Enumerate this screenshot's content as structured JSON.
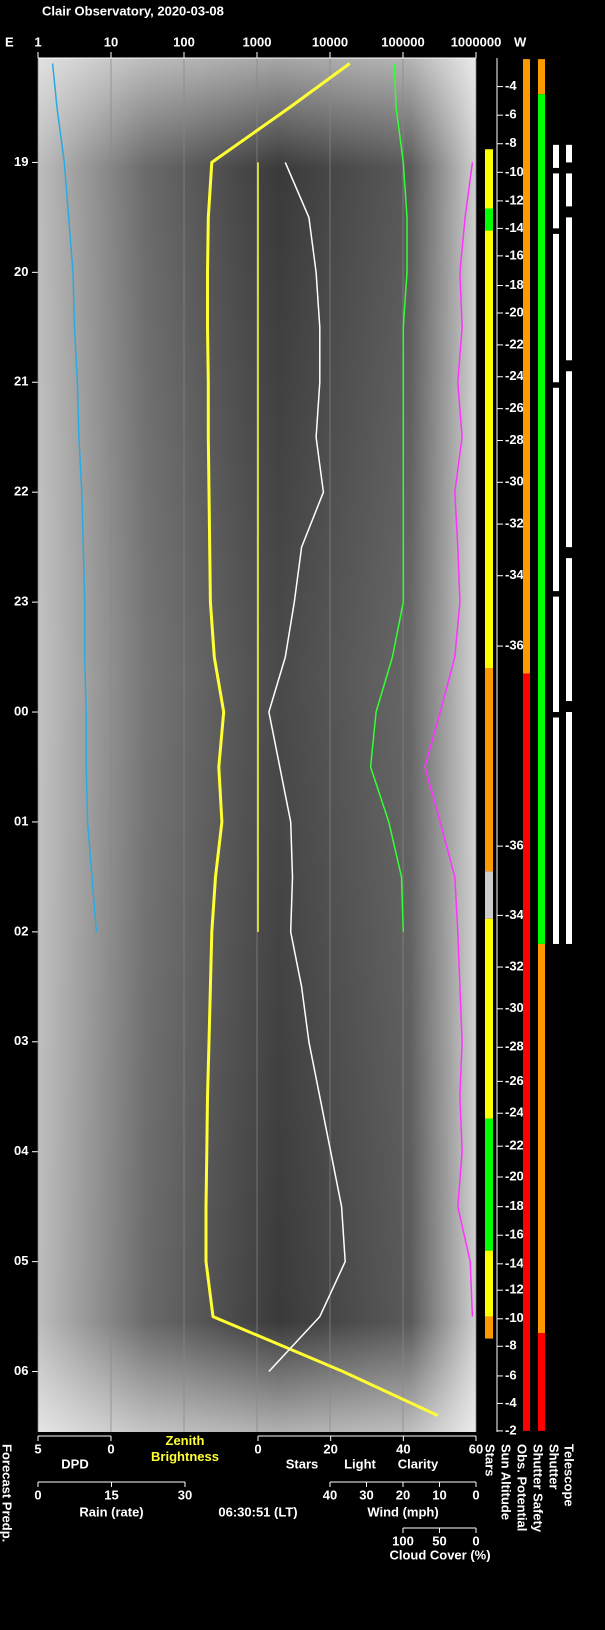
{
  "chart_data": {
    "type": "line",
    "title": "Clair Observatory, 2020-03-08",
    "east_label": "E",
    "west_label": "W",
    "time_label": "06:30:51 (LT)",
    "ylim": [
      18.05,
      30.55
    ],
    "yticks": [
      19,
      20,
      21,
      22,
      23,
      {
        "value": 24,
        "label": "00"
      },
      {
        "value": 25,
        "label": "01"
      },
      {
        "value": 26,
        "label": "02"
      },
      {
        "value": 27,
        "label": "03"
      },
      {
        "value": 28,
        "label": "04"
      },
      {
        "value": 29,
        "label": "05"
      },
      {
        "value": 30,
        "label": "06"
      }
    ],
    "axes": {
      "brightness": {
        "lim": [
          1,
          1000000
        ],
        "ticks": [
          1,
          10,
          100,
          1000,
          10000,
          100000,
          1000000
        ],
        "log": true,
        "grid": true
      },
      "dpd": {
        "lim": [
          5,
          0
        ],
        "ticks": [
          5,
          0
        ]
      },
      "stars": {
        "lim": [
          0,
          60
        ],
        "ticks": [
          0,
          20,
          40,
          60
        ]
      },
      "rain": {
        "lim": [
          0,
          30
        ],
        "ticks": [
          0,
          15,
          30
        ],
        "label": "Rain (rate)",
        "color": "#29c5e6"
      },
      "wind": {
        "lim": [
          40,
          0
        ],
        "ticks": [
          40,
          30,
          20,
          10,
          0
        ],
        "label": "Wind (mph)",
        "color": "#ff8fa3"
      },
      "cloud": {
        "lim": [
          100,
          0
        ],
        "ticks": [
          100,
          50,
          0
        ]
      }
    },
    "x": [
      18.1,
      18.5,
      19,
      19.5,
      20,
      20.5,
      21,
      21.5,
      22,
      22.5,
      23,
      23.5,
      24,
      24.5,
      25,
      25.5,
      26,
      26.5,
      27,
      27.5,
      28,
      28.5,
      29,
      29.5,
      30,
      30.4
    ],
    "series": [
      {
        "name": "DPD",
        "color": "#29abe2",
        "axis": "dpd",
        "values": [
          4.0,
          3.7,
          3.2,
          2.9,
          2.6,
          2.5,
          2.3,
          2.2,
          2.0,
          1.9,
          1.8,
          1.8,
          1.7,
          1.7,
          1.6,
          1.3,
          1.0,
          null,
          null,
          null,
          null,
          null,
          null,
          null,
          null,
          null
        ]
      },
      {
        "name": "Zenith Brightness",
        "color": "#ffff33",
        "axis": "brightness",
        "values": [
          18600,
          2800,
          240,
          215,
          210,
          210,
          215,
          215,
          220,
          225,
          230,
          260,
          350,
          300,
          330,
          270,
          240,
          230,
          220,
          210,
          205,
          200,
          200,
          250,
          15000,
          300000
        ]
      },
      {
        "name": "Stars",
        "color": "#ffffff",
        "axis": "stars",
        "values": [
          null,
          null,
          7.5,
          14,
          16,
          17,
          17,
          16,
          18,
          12,
          10,
          7.5,
          3,
          6,
          9,
          9.5,
          9,
          12,
          14,
          17,
          20,
          23,
          24,
          17,
          3,
          null
        ]
      },
      {
        "name": "Light",
        "color": "#ffff33",
        "axis": "stars",
        "values": [
          null,
          null,
          0,
          0,
          0,
          0,
          0,
          0,
          0,
          0,
          0,
          0,
          0,
          0,
          0,
          0,
          0,
          null,
          null,
          null,
          null,
          null,
          null,
          null,
          null,
          null
        ]
      },
      {
        "name": "Clarity",
        "color": "#33ff33",
        "axis": "stars",
        "values": [
          37.5,
          38,
          40,
          41,
          41,
          40,
          40,
          40,
          40,
          40,
          40,
          37,
          32.5,
          31,
          36,
          39.5,
          40,
          null,
          null,
          null,
          null,
          null,
          null,
          null,
          null,
          null
        ]
      },
      {
        "name": "Cloud Cover (%)",
        "color": "#ff33ff",
        "axis": "cloud",
        "values": [
          null,
          null,
          5,
          15,
          22,
          19,
          25,
          19,
          29,
          25,
          22,
          29,
          49,
          70,
          49,
          29,
          25,
          22,
          19,
          22,
          19,
          25,
          8,
          5,
          null,
          null
        ]
      }
    ],
    "sun_altitude": {
      "label": "Sun Altitude",
      "times": [
        18.31,
        18.57,
        18.83,
        19.09,
        19.35,
        19.6,
        19.85,
        20.12,
        20.37,
        20.66,
        20.95,
        21.24,
        21.53,
        21.91,
        22.29,
        22.76,
        23.4,
        25.22,
        25.85,
        26.32,
        26.7,
        27.05,
        27.36,
        27.65,
        27.95,
        28.23,
        28.5,
        28.76,
        29.02,
        29.26,
        29.52,
        29.77,
        30.04,
        30.29,
        30.54
      ],
      "values": [
        -4,
        -6,
        -8,
        -10,
        -12,
        -14,
        -16,
        -18,
        -20,
        -22,
        -24,
        -26,
        -28,
        -30,
        -32,
        -34,
        -36,
        -36,
        -34,
        -32,
        -30,
        -28,
        -26,
        -24,
        -22,
        -20,
        -18,
        -16,
        -14,
        -12,
        -10,
        -8,
        -6,
        -4,
        -2
      ]
    },
    "forecast_label": "Forecast Predp.",
    "columns": [
      {
        "name": "Stars",
        "segments": [
          {
            "start": 18.88,
            "end": 19.42,
            "color": "#ffff00"
          },
          {
            "start": 19.42,
            "end": 19.62,
            "color": "#00ff00"
          },
          {
            "start": 19.62,
            "end": 23.6,
            "color": "#ffff00"
          },
          {
            "start": 23.6,
            "end": 25.45,
            "color": "#ff9900"
          },
          {
            "start": 25.45,
            "end": 25.88,
            "color": "#cccccc"
          },
          {
            "start": 25.88,
            "end": 27.7,
            "color": "#ffff00"
          },
          {
            "start": 27.7,
            "end": 28.9,
            "color": "#00ff00"
          },
          {
            "start": 28.9,
            "end": 29.5,
            "color": "#ffff00"
          },
          {
            "start": 29.5,
            "end": 29.7,
            "color": "#ff9900"
          }
        ]
      },
      {
        "name": "Obs. Potential",
        "segments": [
          {
            "start": 18.06,
            "end": 23.65,
            "color": "#ff9900"
          },
          {
            "start": 23.65,
            "end": 30.54,
            "color": "#ff0000"
          }
        ]
      },
      {
        "name": "Shutter Safety",
        "segments": [
          {
            "start": 18.06,
            "end": 18.38,
            "color": "#ff9900"
          },
          {
            "start": 18.38,
            "end": 26.11,
            "color": "#00ff00"
          },
          {
            "start": 26.11,
            "end": 29.65,
            "color": "#ff9900"
          },
          {
            "start": 29.65,
            "end": 30.54,
            "color": "#ff0000"
          }
        ]
      },
      {
        "name": "Shutter",
        "segments": [
          {
            "start": 18.84,
            "end": 19.05,
            "color": "#ffffff"
          },
          {
            "start": 19.1,
            "end": 19.6,
            "color": "#ffffff"
          },
          {
            "start": 19.65,
            "end": 21.0,
            "color": "#ffffff"
          },
          {
            "start": 21.05,
            "end": 22.9,
            "color": "#ffffff"
          },
          {
            "start": 22.95,
            "end": 24.0,
            "color": "#ffffff"
          },
          {
            "start": 24.05,
            "end": 26.11,
            "color": "#ffffff"
          }
        ]
      },
      {
        "name": "Telescope",
        "segments": [
          {
            "start": 18.84,
            "end": 19.0,
            "color": "#ffffff"
          },
          {
            "start": 19.1,
            "end": 19.4,
            "color": "#ffffff"
          },
          {
            "start": 19.5,
            "end": 20.8,
            "color": "#ffffff"
          },
          {
            "start": 20.9,
            "end": 22.5,
            "color": "#ffffff"
          },
          {
            "start": 22.6,
            "end": 23.9,
            "color": "#ffffff"
          },
          {
            "start": 24.0,
            "end": 26.11,
            "color": "#ffffff"
          }
        ]
      }
    ]
  }
}
